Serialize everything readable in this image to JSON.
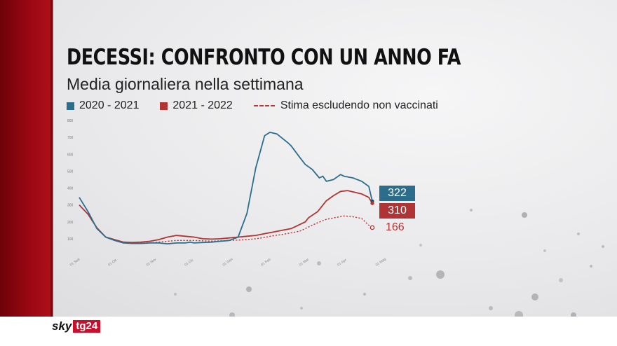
{
  "channel": {
    "logo_sky": "sky",
    "logo_tg": "tg24"
  },
  "chart_data": {
    "type": "line",
    "title": "DECESSI: CONFRONTO CON UN ANNO FA",
    "subtitle": "Media giornaliera nella settimana",
    "xlabel": "",
    "ylabel": "",
    "ylim": [
      0,
      800
    ],
    "yticks": [
      "800",
      "700",
      "600",
      "500",
      "400",
      "300",
      "200",
      "100"
    ],
    "xticks": [
      "01 Sett",
      "01 Ott",
      "01 Nov",
      "01 Dic",
      "01 Gen",
      "01 Feb",
      "01 Mar",
      "01 Apr",
      "01 Mag"
    ],
    "colors": {
      "blue": "#2d6d8c",
      "red": "#b03434",
      "dashed": "#b63a3a"
    },
    "series": [
      {
        "name": "2020 - 2021",
        "x": [
          0,
          5,
          10,
          15,
          20,
          25,
          30,
          35,
          40,
          45,
          50,
          55,
          60,
          63,
          65,
          70,
          75,
          80,
          85,
          90,
          95,
          100,
          105,
          108,
          112,
          118,
          120,
          125,
          128,
          132,
          136,
          138,
          140,
          144,
          148,
          150,
          155,
          160,
          164,
          166
        ],
        "values": [
          345,
          260,
          160,
          110,
          90,
          75,
          72,
          72,
          75,
          75,
          70,
          75,
          75,
          80,
          75,
          78,
          80,
          85,
          90,
          110,
          250,
          520,
          710,
          730,
          720,
          670,
          650,
          580,
          540,
          510,
          460,
          470,
          440,
          450,
          480,
          470,
          460,
          440,
          410,
          322
        ]
      },
      {
        "name": "2021 - 2022",
        "x": [
          0,
          5,
          10,
          15,
          20,
          25,
          30,
          35,
          40,
          45,
          50,
          55,
          60,
          65,
          70,
          75,
          80,
          85,
          90,
          95,
          100,
          105,
          110,
          115,
          120,
          125,
          128,
          130,
          135,
          140,
          144,
          148,
          152,
          156,
          160,
          164,
          166
        ],
        "values": [
          300,
          245,
          165,
          110,
          95,
          80,
          78,
          80,
          85,
          95,
          110,
          120,
          115,
          110,
          100,
          98,
          100,
          105,
          110,
          115,
          120,
          130,
          140,
          150,
          160,
          185,
          200,
          225,
          260,
          325,
          355,
          380,
          385,
          375,
          365,
          345,
          310
        ]
      },
      {
        "name": "Stima escludendo non vaccinati",
        "x": [
          0,
          5,
          10,
          15,
          20,
          25,
          30,
          35,
          40,
          45,
          50,
          55,
          60,
          65,
          70,
          75,
          80,
          85,
          90,
          95,
          100,
          105,
          110,
          115,
          120,
          125,
          130,
          135,
          140,
          145,
          150,
          155,
          160,
          164,
          166
        ],
        "values": [
          300,
          245,
          165,
          110,
          95,
          80,
          75,
          75,
          75,
          80,
          85,
          90,
          90,
          90,
          88,
          86,
          88,
          90,
          92,
          95,
          100,
          108,
          118,
          125,
          135,
          145,
          170,
          195,
          215,
          225,
          235,
          230,
          220,
          180,
          166
        ]
      }
    ],
    "end_labels": [
      "322",
      "310",
      "166"
    ],
    "legend": "top-left"
  }
}
